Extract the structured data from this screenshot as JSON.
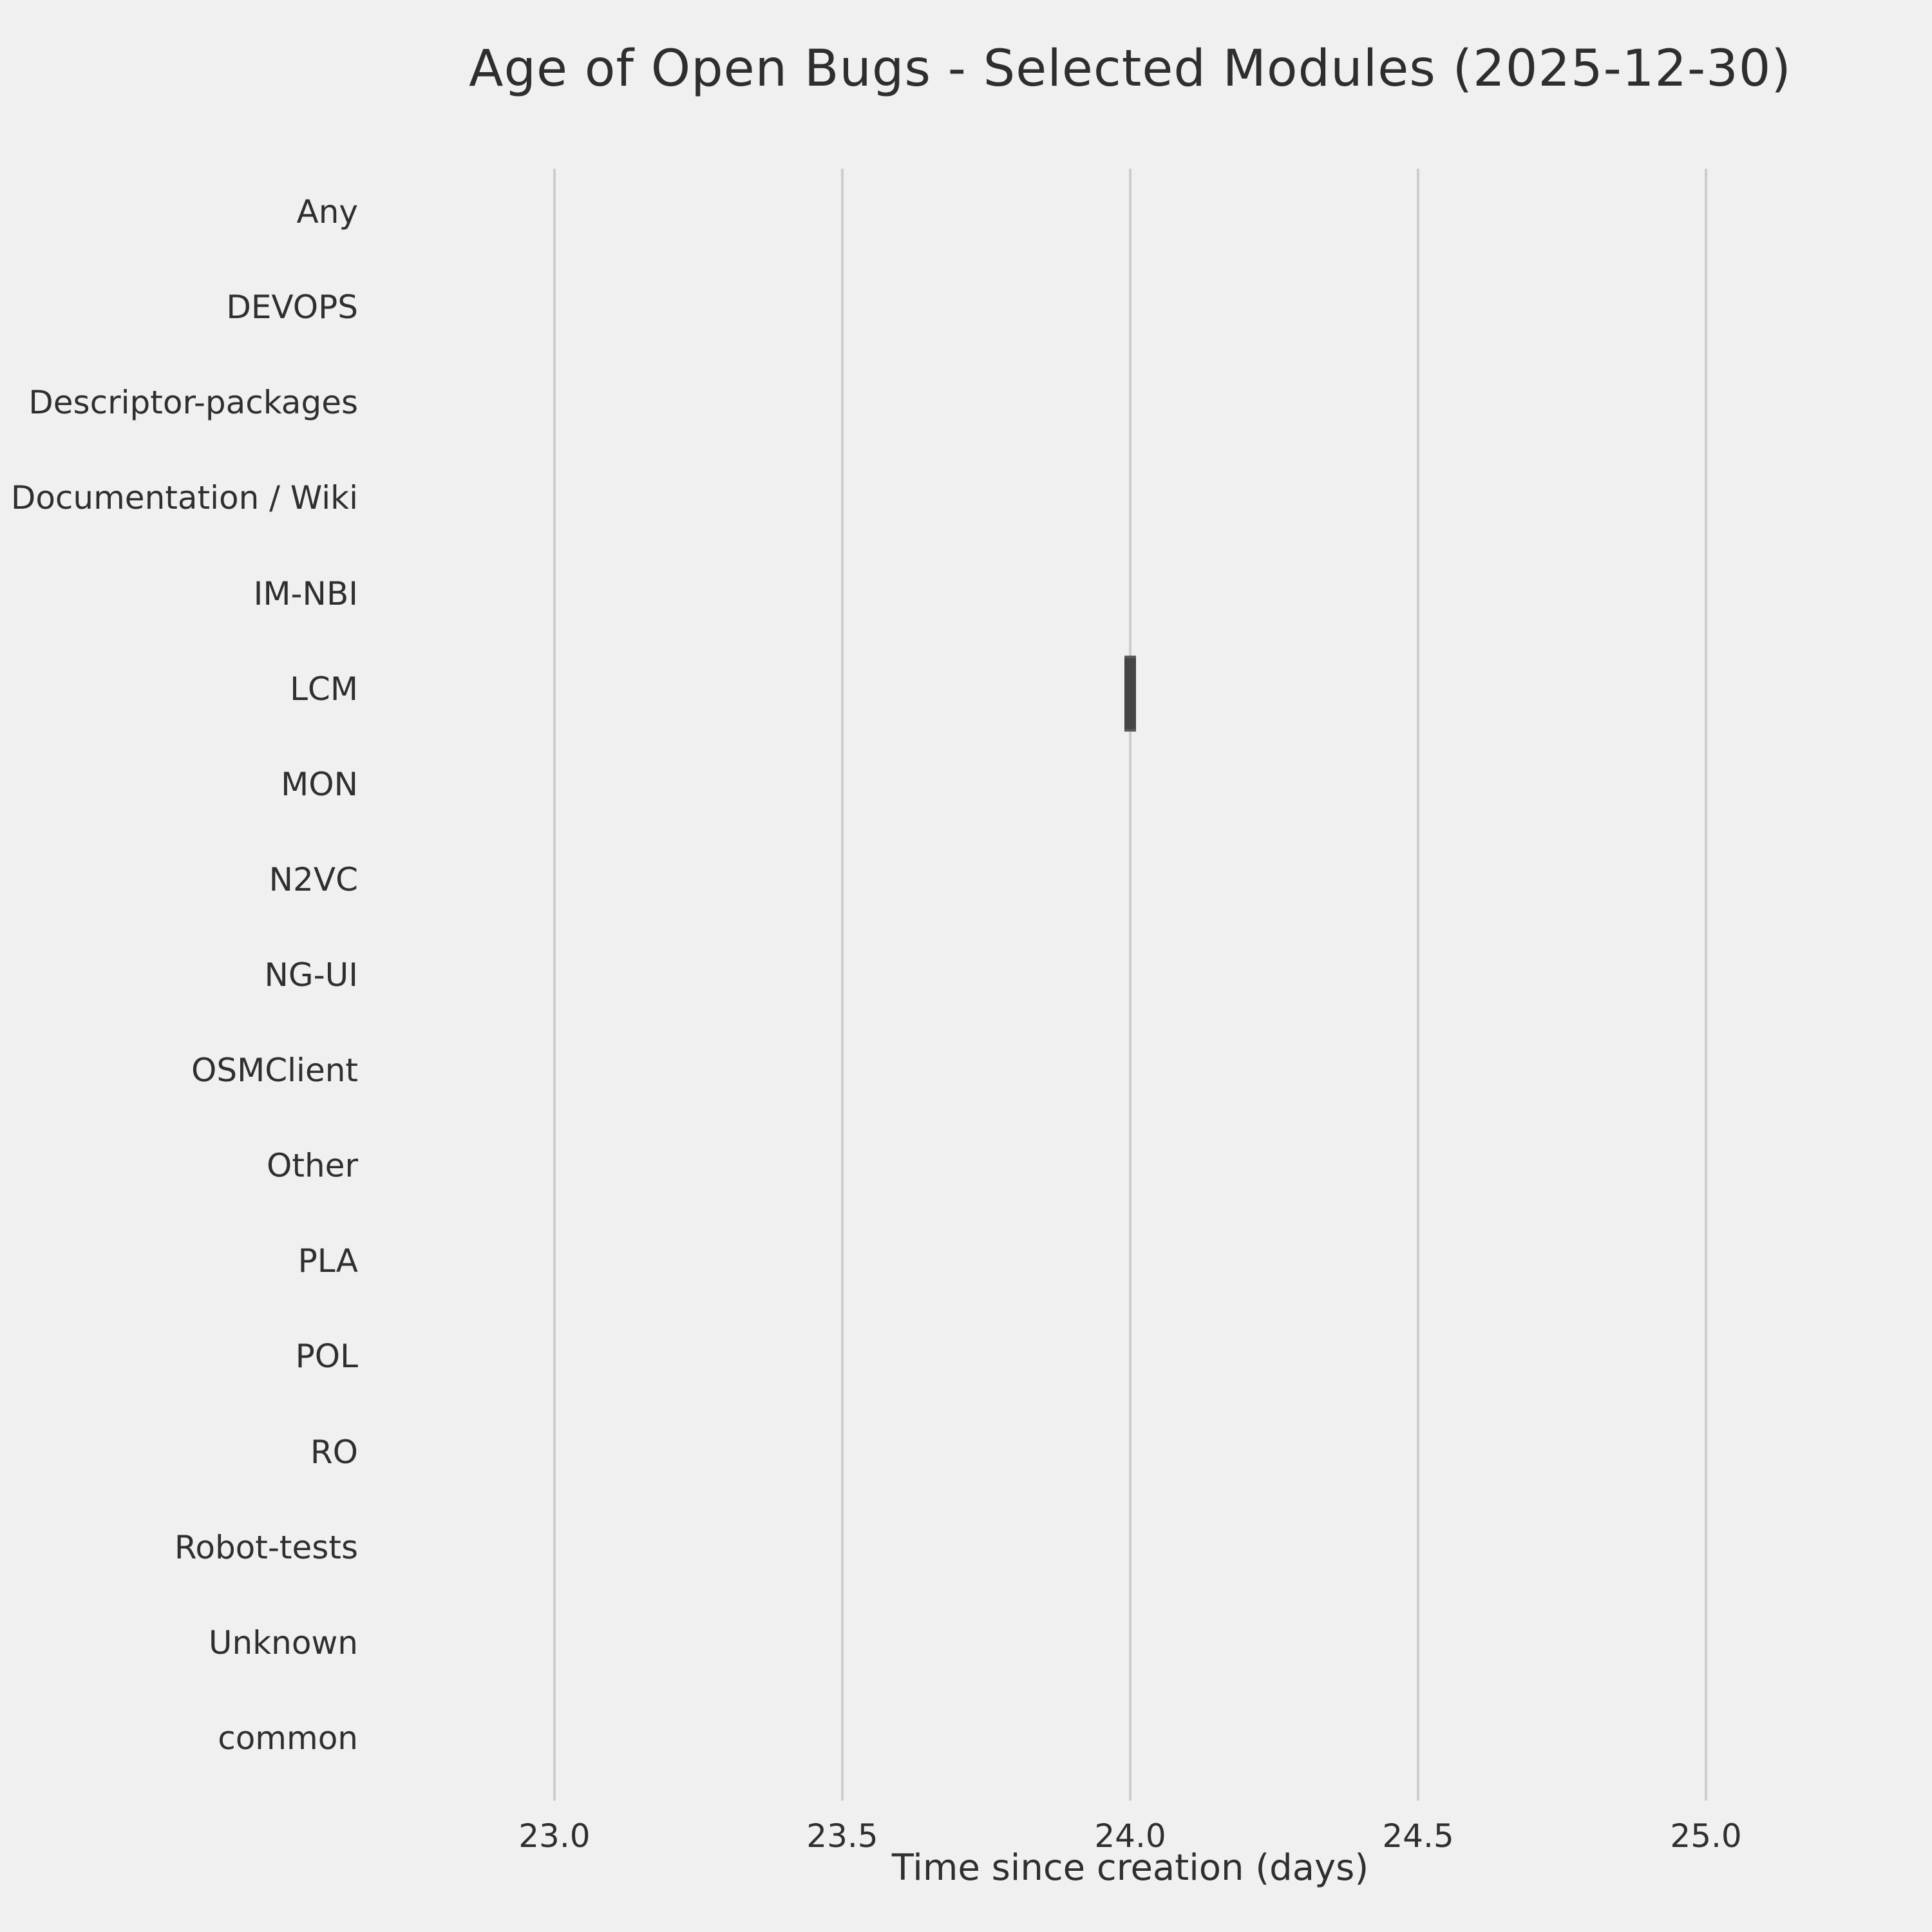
{
  "title": "Age of Open Bugs - Selected Modules (2025-12-30)",
  "colors": {
    "background": "#f0f0f0",
    "gridline": "#cdcdcd",
    "box_fill": "#454545",
    "box_edge": "#5a5a5a",
    "text": "#2f2f2f"
  },
  "chart_data": {
    "type": "boxplot",
    "orientation": "horizontal",
    "title": "Age of Open Bugs - Selected Modules (2025-12-30)",
    "xlabel": "Time since creation (days)",
    "ylabel": "",
    "categories": [
      "Any",
      "DEVOPS",
      "Descriptor-packages",
      "Documentation / Wiki",
      "IM-NBI",
      "LCM",
      "MON",
      "N2VC",
      "NG-UI",
      "OSMClient",
      "Other",
      "PLA",
      "POL",
      "RO",
      "Robot-tests",
      "Unknown",
      "common"
    ],
    "x_ticks": [
      {
        "value": 23.0,
        "label": "23.0"
      },
      {
        "value": 23.5,
        "label": "23.5"
      },
      {
        "value": 24.0,
        "label": "24.0"
      },
      {
        "value": 24.5,
        "label": "24.5"
      },
      {
        "value": 25.0,
        "label": "25.0"
      }
    ],
    "xlim": [
      22.697,
      25.303
    ],
    "grid": "vertical-only",
    "legend": false,
    "boxes": [
      {
        "category": "LCM",
        "q1": 23.99,
        "median": 24.0,
        "q3": 24.01,
        "age_days": 24.0
      }
    ]
  }
}
